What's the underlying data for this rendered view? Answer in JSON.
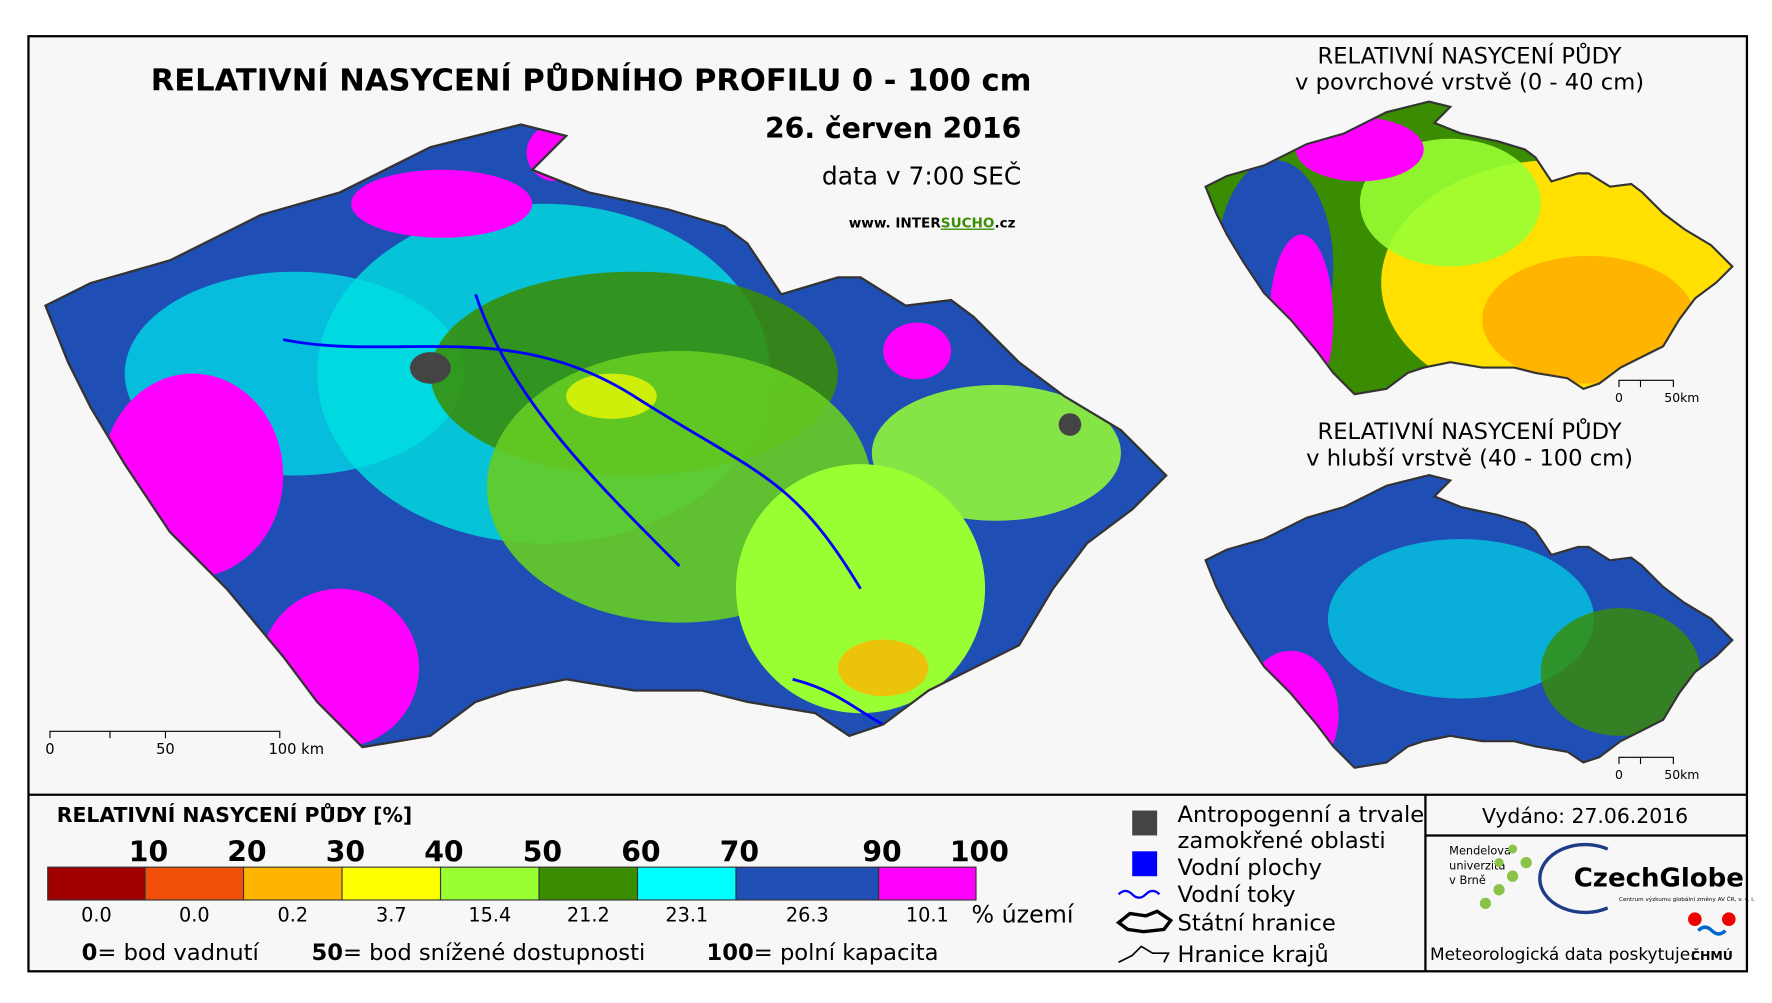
{
  "title": "RELATIVNÍ NASYCENÍ PŮDNÍHO PROFILU 0 - 100 cm",
  "date": "26. červen 2016",
  "data_time": "data v 7:00 SEČ",
  "website": {
    "prefix": "www. INTER",
    "highlight": "SUCHO",
    "suffix": ".cz"
  },
  "main_map": {
    "scale": [
      "0",
      "50",
      "100 km"
    ]
  },
  "inset_top": {
    "title_lines": [
      "RELATIVNÍ NASYCENÍ PŮDY",
      "v povrchové vrstvě (0 - 40 cm)"
    ],
    "scale": [
      "0",
      "50km"
    ]
  },
  "inset_bottom": {
    "title_lines": [
      "RELATIVNÍ NASYCENÍ PŮDY",
      "v hlubší vrstvě (40 - 100 cm)"
    ],
    "scale": [
      "0",
      "50km"
    ]
  },
  "legend": {
    "title": "RELATIVNÍ NASYCENÍ PŮDY [%]",
    "classes": [
      {
        "limit": "10",
        "color": "#a00000",
        "share": "0.0"
      },
      {
        "limit": "20",
        "color": "#f0500a",
        "share": "0.0"
      },
      {
        "limit": "30",
        "color": "#ffb400",
        "share": "0.2"
      },
      {
        "limit": "40",
        "color": "#ffff00",
        "share": "3.7"
      },
      {
        "limit": "50",
        "color": "#99ff33",
        "share": "15.4"
      },
      {
        "limit": "60",
        "color": "#3a8c00",
        "share": "21.2"
      },
      {
        "limit": "70",
        "color": "#00ffff",
        "share": "23.1"
      },
      {
        "limit": "90",
        "color": "#1f4fb4",
        "share": "26.3"
      },
      {
        "limit": "100",
        "color": "#ff00ff",
        "share": "10.1"
      }
    ],
    "unit": "% území",
    "definitions": [
      {
        "value": "0",
        "text": "= bod vadnutí"
      },
      {
        "value": "50",
        "text": "= bod snížené dostupnosti"
      },
      {
        "value": "100",
        "text": "= polní kapacita"
      }
    ]
  },
  "symbols": [
    "Antropogenní a trvale",
    "zamokřené oblasti",
    "Vodní plochy",
    "Vodní toky",
    "Státní hranice",
    "Hranice krajů"
  ],
  "issued": "Vydáno: 27.06.2016",
  "logos": {
    "mendel": [
      "Mendelova",
      "univerzita",
      "v Brně"
    ],
    "czechglobe": "CzechGlobe",
    "czechglobe_sub": "Centrum výzkumu globální změny AV ČR, v. v. i.",
    "chmu": "ČHMÚ"
  },
  "provider": "Meteorologická data poskytuje:"
}
